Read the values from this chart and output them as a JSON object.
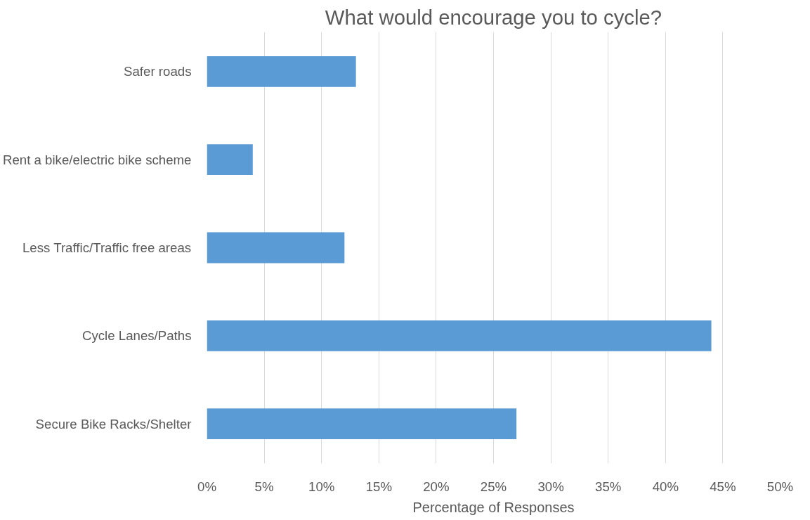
{
  "chart_data": {
    "type": "bar",
    "orientation": "horizontal",
    "title": "What would encourage you to cycle?",
    "xlabel": "Percentage of Responses",
    "categories": [
      "Safer roads",
      "Rent a bike/electric bike scheme",
      "Less Traffic/Traffic free areas",
      "Cycle Lanes/Paths",
      "Secure Bike Racks/Shelter"
    ],
    "values": [
      13,
      4,
      12,
      44,
      27
    ],
    "color": "#5b9bd5",
    "xlim": [
      0,
      50
    ],
    "xticks": [
      {
        "value": 0,
        "label": "0%"
      },
      {
        "value": 5,
        "label": "5%"
      },
      {
        "value": 10,
        "label": "10%"
      },
      {
        "value": 15,
        "label": "15%"
      },
      {
        "value": 20,
        "label": "20%"
      },
      {
        "value": 25,
        "label": "25%"
      },
      {
        "value": 30,
        "label": "30%"
      },
      {
        "value": 35,
        "label": "35%"
      },
      {
        "value": 40,
        "label": "40%"
      },
      {
        "value": 45,
        "label": "45%"
      },
      {
        "value": 50,
        "label": "50%"
      }
    ],
    "grid": "x"
  }
}
